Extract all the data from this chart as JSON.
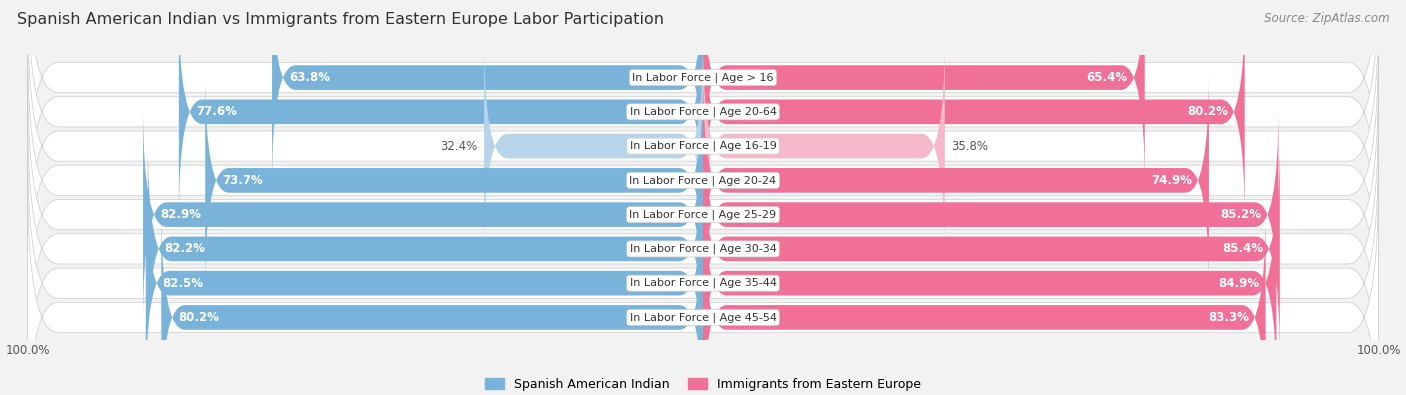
{
  "title": "Spanish American Indian vs Immigrants from Eastern Europe Labor Participation",
  "source": "Source: ZipAtlas.com",
  "categories": [
    "In Labor Force | Age > 16",
    "In Labor Force | Age 20-64",
    "In Labor Force | Age 16-19",
    "In Labor Force | Age 20-24",
    "In Labor Force | Age 25-29",
    "In Labor Force | Age 30-34",
    "In Labor Force | Age 35-44",
    "In Labor Force | Age 45-54"
  ],
  "left_values": [
    63.8,
    77.6,
    32.4,
    73.7,
    82.9,
    82.2,
    82.5,
    80.2
  ],
  "right_values": [
    65.4,
    80.2,
    35.8,
    74.9,
    85.2,
    85.4,
    84.9,
    83.3
  ],
  "left_color": "#7ab3d9",
  "left_color_light": "#b8d4ea",
  "right_color": "#f07098",
  "right_color_light": "#f5b8cb",
  "background_color": "#f2f2f2",
  "row_bg": "#e8e8ec",
  "legend_left": "Spanish American Indian",
  "legend_right": "Immigrants from Eastern Europe",
  "title_fontsize": 11.5,
  "label_fontsize": 8.5,
  "cat_fontsize": 8.0
}
